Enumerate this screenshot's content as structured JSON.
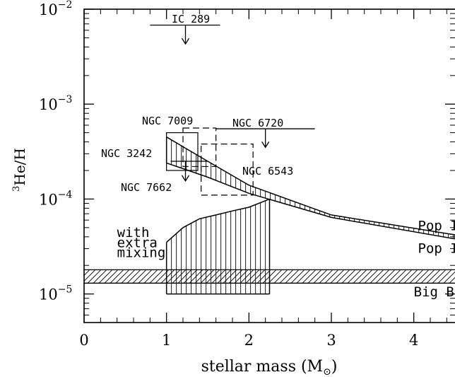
{
  "chart_data": {
    "type": "line",
    "xlabel_main": "stellar mass (M",
    "xlabel_sub": "⊙",
    "xlabel_end": ")",
    "ylabel_sup": "3",
    "ylabel_main": "He/H",
    "x_range": [
      0,
      4.5
    ],
    "y_range": [
      5e-06,
      0.01
    ],
    "y_scale": "log",
    "x_ticks": [
      {
        "value": 0,
        "label": "0"
      },
      {
        "value": 1,
        "label": "1"
      },
      {
        "value": 2,
        "label": "2"
      },
      {
        "value": 3,
        "label": "3"
      },
      {
        "value": 4,
        "label": "4"
      }
    ],
    "y_ticks": [
      {
        "value": 1e-05,
        "base": "10",
        "exp": "−5"
      },
      {
        "value": 0.0001,
        "base": "10",
        "exp": "−4"
      },
      {
        "value": 0.001,
        "base": "10",
        "exp": "−3"
      },
      {
        "value": 0.01,
        "base": "10",
        "exp": "−2"
      }
    ],
    "bands": [
      {
        "name": "Pop I",
        "upper": [
          [
            1.0,
            0.00045
          ],
          [
            1.5,
            0.00025
          ],
          [
            2.0,
            0.00014
          ],
          [
            3.0,
            6.8e-05
          ],
          [
            4.5,
            4.2e-05
          ]
        ],
        "lower": [
          [
            1.0,
            0.00024
          ],
          [
            1.5,
            0.00017
          ],
          [
            2.0,
            0.000115
          ],
          [
            3.0,
            6.4e-05
          ],
          [
            4.5,
            3.8e-05
          ]
        ]
      },
      {
        "name": "with extra mixing",
        "upper": [
          [
            1.0,
            3.5e-05
          ],
          [
            1.2,
            5e-05
          ],
          [
            1.4,
            6.2e-05
          ],
          [
            1.6,
            6.8e-05
          ],
          [
            1.8,
            7.5e-05
          ],
          [
            2.0,
            8.2e-05
          ],
          [
            2.25,
            0.0001
          ]
        ],
        "lower": [
          [
            1.0,
            1e-05
          ],
          [
            2.25,
            1e-05
          ]
        ]
      },
      {
        "name": "Big Bang",
        "range": [
          1.3e-05,
          1.8e-05
        ]
      }
    ],
    "objects": [
      {
        "name": "IC 289",
        "x_range": [
          0.8,
          1.65
        ],
        "y": 0.0068,
        "limit": "upper",
        "arrow_x": 1.23,
        "arrow_to": 0.0043
      },
      {
        "name": "NGC 7009",
        "x_range": [
          1.0,
          1.38
        ],
        "y_range": [
          0.0002,
          0.0005
        ],
        "style": "box"
      },
      {
        "name": "NGC 6720",
        "x_range": [
          1.6,
          2.8
        ],
        "y": 0.00055,
        "limit": "upper",
        "arrow_x": 2.2,
        "arrow_to": 0.00035
      },
      {
        "name": "NGC 3242",
        "x_range": [
          1.2,
          1.6
        ],
        "y_range": [
          0.00022,
          0.00056
        ],
        "style": "dashed"
      },
      {
        "name": "NGC 6543",
        "x_range": [
          1.42,
          2.05
        ],
        "y_range": [
          0.00011,
          0.00038
        ],
        "style": "dashed"
      },
      {
        "name": "NGC 7662",
        "x_range": [
          1.05,
          1.5
        ],
        "y": 0.00025,
        "limit": "upper",
        "arrow_x": 1.23,
        "arrow_to": 0.000155
      }
    ],
    "annotations": [
      {
        "text": "Pop I",
        "x": 4.05,
        "y": 5.2e-05
      },
      {
        "text": "Pop II",
        "x": 4.05,
        "y": 3e-05
      },
      {
        "text": "Big Bang",
        "x": 4.0,
        "y": 1.05e-05
      },
      {
        "text": "with",
        "x": 0.4,
        "y": 4.4e-05
      },
      {
        "text": "extra",
        "x": 0.4,
        "y": 3.45e-05
      },
      {
        "text": "mixing",
        "x": 0.4,
        "y": 2.7e-05
      }
    ]
  }
}
